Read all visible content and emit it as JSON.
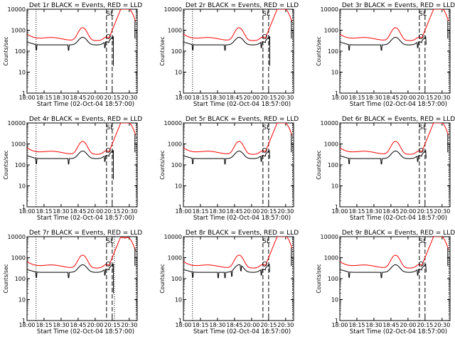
{
  "chart_data": {
    "type": "line",
    "shared": {
      "title_template": "Det {det} BLACK = Events, RED = LLD",
      "xlabel": "Start Time (02-Oct-04 18:57:00)",
      "ylabel": "Counts/sec",
      "x_ticks": [
        "18:00",
        "18:15",
        "18:30",
        "18:45",
        "20:00",
        "20:15",
        "20:30"
      ],
      "y_ticks": [
        "1",
        "10",
        "100",
        "1000",
        "10000"
      ],
      "ylim": [
        1,
        10000
      ],
      "y_scale": "log",
      "grid": false,
      "legend": "in title",
      "colors": {
        "events": "#000000",
        "lld": "#ff0000",
        "markers": "#000000"
      },
      "x_time_min": [
        0,
        15,
        30,
        45,
        60,
        75,
        90
      ],
      "xlim_min": [
        0,
        97
      ]
    },
    "panels": [
      {
        "det": "1r",
        "label_marker": "SL",
        "dotted_lines_min": [
          8,
          96
        ],
        "dashed_lines_min": [
          70,
          75
        ],
        "events_spike_min": 76,
        "events_dropouts_min": [
          8,
          36,
          68
        ],
        "events_peak": 460,
        "lld_peak": 11500
      },
      {
        "det": "2r",
        "label_marker": "SL",
        "dotted_lines_min": [
          8,
          96
        ],
        "dashed_lines_min": [
          70,
          75
        ],
        "events_spike_min": 76,
        "events_dropouts_min": [
          8,
          36,
          68
        ],
        "events_peak": 440,
        "lld_peak": 11000
      },
      {
        "det": "3r",
        "label_marker": "SL",
        "dotted_lines_min": [
          96
        ],
        "dashed_lines_min": [
          70,
          75
        ],
        "events_spike_min": null,
        "events_dropouts_min": [
          8,
          36,
          68
        ],
        "events_peak": 300,
        "lld_peak": 12500
      },
      {
        "det": "4r",
        "label_marker": "SL",
        "dotted_lines_min": [
          8,
          96
        ],
        "dashed_lines_min": [
          70,
          75
        ],
        "events_spike_min": 76,
        "events_dropouts_min": [
          8,
          36,
          68
        ],
        "events_peak": 450,
        "lld_peak": 11500
      },
      {
        "det": "5r",
        "label_marker": "SL",
        "dotted_lines_min": [
          96
        ],
        "dashed_lines_min": [
          70,
          75
        ],
        "events_spike_min": null,
        "events_dropouts_min": [
          8,
          36,
          68
        ],
        "events_peak": 430,
        "lld_peak": 11000
      },
      {
        "det": "6r",
        "label_marker": "SL",
        "dotted_lines_min": [
          96
        ],
        "dashed_lines_min": [
          70,
          75
        ],
        "events_spike_min": null,
        "events_dropouts_min": [
          8,
          36,
          68
        ],
        "events_peak": 420,
        "lld_peak": 11500
      },
      {
        "det": "7r",
        "label_marker": "SL",
        "dotted_lines_min": [
          8,
          77,
          96
        ],
        "dashed_lines_min": [
          70,
          75
        ],
        "events_spike_min": 76,
        "events_dropouts_min": [
          8,
          36,
          68
        ],
        "events_peak": 440,
        "lld_peak": 9000
      },
      {
        "det": "8r",
        "label_marker": "SL",
        "dotted_lines_min": [
          8,
          96
        ],
        "dashed_lines_min": [
          70,
          75
        ],
        "events_spike_min": null,
        "events_dropouts_min": [
          8,
          30,
          36,
          42,
          50,
          68
        ],
        "events_peak": 300,
        "lld_peak": 12500
      },
      {
        "det": "9r",
        "label_marker": "SL",
        "dotted_lines_min": [
          96
        ],
        "dashed_lines_min": [
          70,
          75
        ],
        "events_spike_min": null,
        "events_dropouts_min": [
          8,
          36,
          68
        ],
        "events_peak": 420,
        "lld_peak": 11000
      }
    ]
  }
}
